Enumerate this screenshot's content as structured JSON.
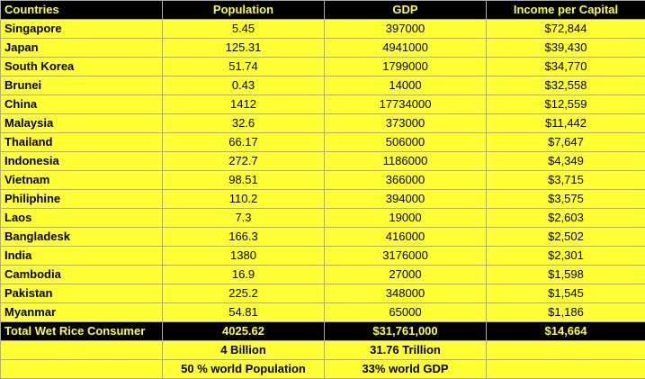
{
  "headers": [
    "Countries",
    "Population",
    "GDP",
    "Income per Capital"
  ],
  "rows": [
    [
      "Singapore",
      "5.45",
      "397000",
      "$72,844"
    ],
    [
      "Japan",
      "125.31",
      "4941000",
      "$39,430"
    ],
    [
      "South Korea",
      "51.74",
      "1799000",
      "$34,770"
    ],
    [
      "Brunei",
      "0.43",
      "14000",
      "$32,558"
    ],
    [
      "China",
      "1412",
      "17734000",
      "$12,559"
    ],
    [
      "Malaysia",
      "32.6",
      "373000",
      "$11,442"
    ],
    [
      "Thailand",
      "66.17",
      "506000",
      "$7,647"
    ],
    [
      "Indonesia",
      "272.7",
      "1186000",
      "$4,349"
    ],
    [
      "Vietnam",
      "98.51",
      "366000",
      "$3,715"
    ],
    [
      "Philiphine",
      "110.2",
      "394000",
      "$3,575"
    ],
    [
      "Laos",
      "7.3",
      "19000",
      "$2,603"
    ],
    [
      "Bangladesk",
      "166.3",
      "416000",
      "$2,502"
    ],
    [
      "India",
      "1380",
      "3176000",
      "$2,301"
    ],
    [
      "Cambodia",
      "16.9",
      "27000",
      "$1,598"
    ],
    [
      "Pakistan",
      "225.2",
      "348000",
      "$1,545"
    ],
    [
      "Myanmar",
      "54.81",
      "65000",
      "$1,186"
    ]
  ],
  "total": [
    "Total Wet Rice Consumer",
    "4025.62",
    "$31,761,000",
    "$14,664"
  ],
  "notes": [
    {
      "population": "4 Billion",
      "gdp": "31.76 Trillion"
    },
    {
      "population": "50 % world Population",
      "gdp": "33% world GDP"
    }
  ],
  "colors": {
    "yellow": "#ffff33",
    "black": "#000000"
  }
}
